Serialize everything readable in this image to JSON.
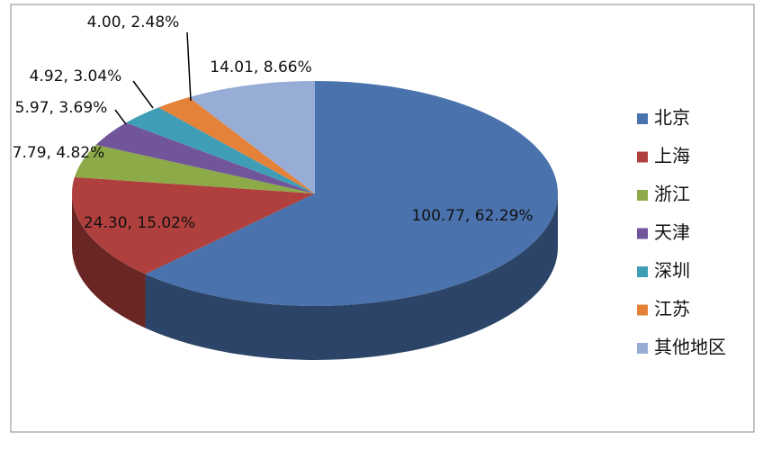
{
  "chart_data": {
    "type": "pie",
    "categories": [
      "北京",
      "上海",
      "浙江",
      "天津",
      "深圳",
      "江苏",
      "其他地区"
    ],
    "values": [
      100.77,
      24.3,
      7.79,
      5.97,
      4.92,
      4.0,
      14.01
    ],
    "value_labels": [
      "100.77, 62.29%",
      "24.30, 15.02%",
      "7.79, 4.82%",
      "5.97, 3.69%",
      "4.92, 3.04%",
      "4.00, 2.48%",
      "14.01, 8.66%"
    ],
    "colors": [
      "#4a72ac",
      "#b0403d",
      "#8cab48",
      "#71559a",
      "#3f9db5",
      "#e4823a",
      "#98add6"
    ],
    "legend": "right"
  }
}
